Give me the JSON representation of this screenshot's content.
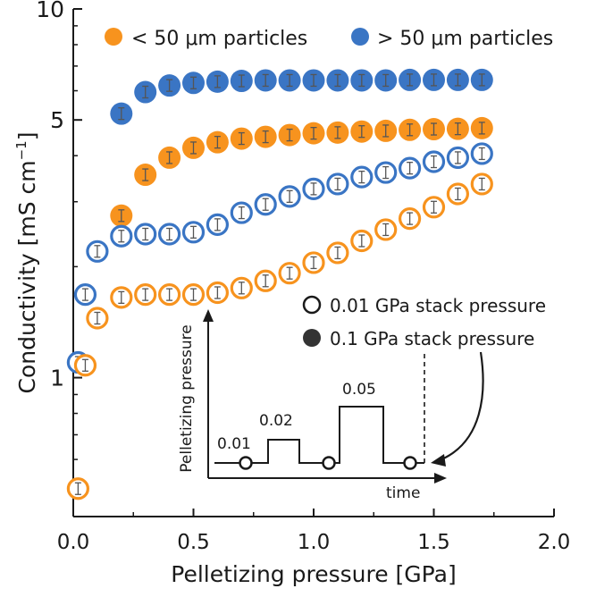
{
  "chart_data": {
    "type": "scatter",
    "title": "",
    "xlabel": "Pelletizing pressure [GPa]",
    "ylabel_main": "Conductivity [mS cm",
    "ylabel_sup": "−1",
    "ylabel_end": "]",
    "xlim": [
      0,
      2.0
    ],
    "ylim": [
      0.42,
      10
    ],
    "yscale": "log",
    "x_ticks": [
      "0.0",
      "0.5",
      "1.0",
      "1.5",
      "2.0"
    ],
    "y_ticks": [
      "1",
      "5",
      "10"
    ],
    "legend_top": [
      {
        "label": "< 50 μm particles",
        "color": "#f7931e"
      },
      {
        "label": "> 50 μm particles",
        "color": "#3a75c4"
      }
    ],
    "legend_fill": [
      {
        "label": "0.01 GPa stack pressure",
        "style": "open"
      },
      {
        "label": "0.1 GPa stack pressure",
        "style": "filled"
      }
    ],
    "colors": {
      "small": "#f7931e",
      "large": "#3a75c4",
      "error": "#555555",
      "axis": "#1a1a1a"
    },
    "series": [
      {
        "name": "> 50 μm, 0.1 GPa stack",
        "color": "#3a75c4",
        "fill": "filled",
        "x": [
          0.2,
          0.3,
          0.4,
          0.5,
          0.6,
          0.7,
          0.8,
          0.9,
          1.0,
          1.1,
          1.2,
          1.3,
          1.4,
          1.5,
          1.6,
          1.7
        ],
        "y": [
          5.2,
          5.95,
          6.2,
          6.3,
          6.35,
          6.38,
          6.4,
          6.4,
          6.4,
          6.4,
          6.4,
          6.4,
          6.42,
          6.42,
          6.42,
          6.42
        ]
      },
      {
        "name": "< 50 μm, 0.1 GPa stack",
        "color": "#f7931e",
        "fill": "filled",
        "x": [
          0.2,
          0.3,
          0.4,
          0.5,
          0.6,
          0.7,
          0.8,
          0.9,
          1.0,
          1.1,
          1.2,
          1.3,
          1.4,
          1.5,
          1.6,
          1.7
        ],
        "y": [
          2.75,
          3.55,
          3.95,
          4.2,
          4.35,
          4.45,
          4.5,
          4.55,
          4.6,
          4.62,
          4.65,
          4.67,
          4.7,
          4.72,
          4.73,
          4.75
        ]
      },
      {
        "name": "> 50 μm, 0.01 GPa stack",
        "color": "#3a75c4",
        "fill": "open",
        "x": [
          0.02,
          0.05,
          0.1,
          0.2,
          0.3,
          0.4,
          0.5,
          0.6,
          0.7,
          0.8,
          0.9,
          1.0,
          1.1,
          1.2,
          1.3,
          1.4,
          1.5,
          1.6,
          1.7
        ],
        "y": [
          1.1,
          1.68,
          2.2,
          2.42,
          2.45,
          2.45,
          2.48,
          2.6,
          2.8,
          2.95,
          3.1,
          3.25,
          3.35,
          3.5,
          3.6,
          3.7,
          3.85,
          3.95,
          4.05
        ]
      },
      {
        "name": "< 50 μm, 0.01 GPa stack",
        "color": "#f7931e",
        "fill": "open",
        "x": [
          0.02,
          0.05,
          0.1,
          0.2,
          0.3,
          0.4,
          0.5,
          0.6,
          0.7,
          0.8,
          0.9,
          1.0,
          1.1,
          1.2,
          1.3,
          1.4,
          1.5,
          1.6,
          1.7
        ],
        "y": [
          0.5,
          1.08,
          1.45,
          1.65,
          1.68,
          1.68,
          1.68,
          1.7,
          1.75,
          1.83,
          1.92,
          2.05,
          2.18,
          2.35,
          2.52,
          2.7,
          2.9,
          3.15,
          3.35
        ]
      }
    ],
    "inset": {
      "ylabel": "Pelletizing pressure",
      "xlabel": "time",
      "step_labels": [
        "0.01",
        "0.02",
        "0.05"
      ]
    }
  }
}
